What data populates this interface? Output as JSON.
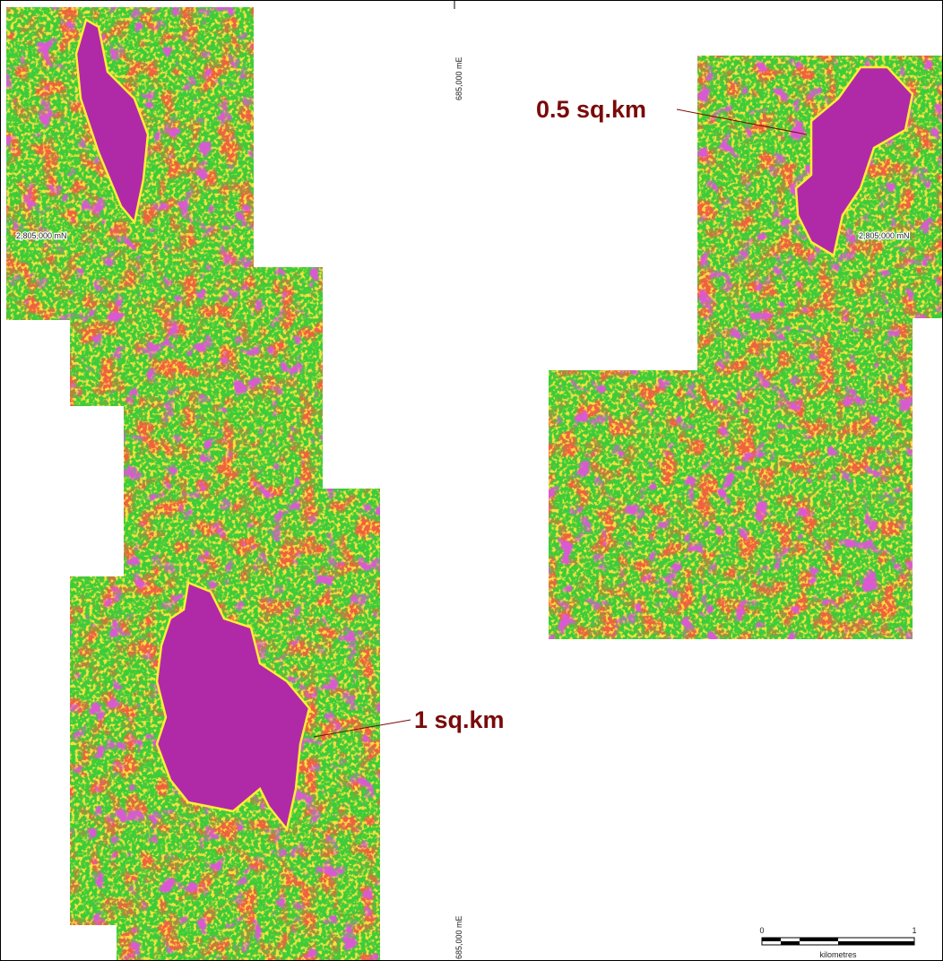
{
  "grid_labels": {
    "easting_top": "685,000 mE",
    "easting_bottom": "685,000 mE",
    "northing_left": "2,805,000 mN",
    "northing_right": "2,805,000 mN"
  },
  "annotations": {
    "right_target": "0.5 sq.km",
    "left_target": "1 sq.km"
  },
  "scale_bar": {
    "start": 0,
    "end": 1,
    "unit": "kilometres"
  }
}
